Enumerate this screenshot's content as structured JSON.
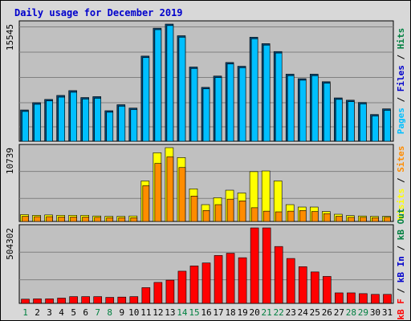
{
  "title": "Daily usage for December 2019",
  "chart_data": [
    {
      "type": "bar",
      "panel": "top",
      "title": "Daily usage for December 2019",
      "ymax_label": "15545",
      "ylim": [
        0,
        15545
      ],
      "axis_label": [
        {
          "text": "Pages",
          "color": "#00bfff"
        },
        {
          "text": " / ",
          "color": "#000000"
        },
        {
          "text": "Files",
          "color": "#0000cc"
        },
        {
          "text": " / ",
          "color": "#000000"
        },
        {
          "text": "Hits",
          "color": "#008040"
        }
      ],
      "categories": [
        "1",
        "2",
        "3",
        "4",
        "5",
        "6",
        "7",
        "8",
        "9",
        "10",
        "11",
        "12",
        "13",
        "14",
        "15",
        "16",
        "17",
        "18",
        "19",
        "20",
        "21",
        "22",
        "23",
        "24",
        "25",
        "26",
        "27",
        "28",
        "29",
        "30",
        "31"
      ],
      "series": [
        {
          "name": "Hits",
          "color": "#004878",
          "values": [
            4150,
            5120,
            5550,
            6080,
            6720,
            5800,
            5920,
            4050,
            4850,
            4400,
            11300,
            15000,
            15545,
            14000,
            9850,
            7150,
            8650,
            10450,
            9950,
            13800,
            12950,
            11900,
            8900,
            8300,
            8900,
            7900,
            5750,
            5450,
            5150,
            3550,
            4300
          ]
        },
        {
          "name": "Files",
          "color": "#00bfff",
          "values": [
            3950,
            4900,
            5350,
            5850,
            6500,
            5600,
            5700,
            3850,
            4650,
            4200,
            11100,
            14800,
            15345,
            13800,
            9650,
            6950,
            8450,
            10250,
            9750,
            13600,
            12750,
            11700,
            8700,
            8100,
            8700,
            7700,
            5550,
            5250,
            4950,
            3350,
            4100
          ]
        }
      ]
    },
    {
      "type": "bar",
      "panel": "middle",
      "ymax_label": "10739",
      "ylim": [
        0,
        10739
      ],
      "axis_label": [
        {
          "text": "Visits",
          "color": "#ffff00"
        },
        {
          "text": " / ",
          "color": "#000000"
        },
        {
          "text": "Sites",
          "color": "#ff8c00"
        }
      ],
      "categories": [
        "1",
        "2",
        "3",
        "4",
        "5",
        "6",
        "7",
        "8",
        "9",
        "10",
        "11",
        "12",
        "13",
        "14",
        "15",
        "16",
        "17",
        "18",
        "19",
        "20",
        "21",
        "22",
        "23",
        "24",
        "25",
        "26",
        "27",
        "28",
        "29",
        "30",
        "31"
      ],
      "series": [
        {
          "name": "Visits",
          "color": "#ffff00",
          "values": [
            1000,
            900,
            950,
            900,
            900,
            900,
            800,
            750,
            750,
            800,
            5900,
            10000,
            10739,
            9300,
            4750,
            2450,
            3450,
            4550,
            4150,
            7250,
            7350,
            5900,
            2450,
            2100,
            2100,
            1450,
            1050,
            850,
            800,
            750,
            750
          ]
        },
        {
          "name": "Sites",
          "color": "#ff8c00",
          "values": [
            750,
            700,
            700,
            650,
            650,
            650,
            600,
            550,
            550,
            550,
            5200,
            8450,
            9400,
            7850,
            3700,
            1600,
            2450,
            3250,
            3000,
            2000,
            1500,
            1400,
            1500,
            1600,
            1450,
            1150,
            750,
            600,
            600,
            550,
            600
          ]
        }
      ]
    },
    {
      "type": "bar",
      "panel": "bottom",
      "ymax_label": "504302",
      "ylim": [
        0,
        504302
      ],
      "axis_label": [
        {
          "text": "kB F",
          "color": "#ff0000"
        },
        {
          "text": " / ",
          "color": "#000000"
        },
        {
          "text": "kB In",
          "color": "#0000cc"
        },
        {
          "text": " / ",
          "color": "#000000"
        },
        {
          "text": "kB Out",
          "color": "#008040"
        }
      ],
      "categories": [
        "1",
        "2",
        "3",
        "4",
        "5",
        "6",
        "7",
        "8",
        "9",
        "10",
        "11",
        "12",
        "13",
        "14",
        "15",
        "16",
        "17",
        "18",
        "19",
        "20",
        "21",
        "22",
        "23",
        "24",
        "25",
        "26",
        "27",
        "28",
        "29",
        "30",
        "31"
      ],
      "series": [
        {
          "name": "kB F",
          "color": "#ff0000",
          "values": [
            28000,
            30000,
            30000,
            35000,
            45000,
            45000,
            45000,
            40000,
            42000,
            45000,
            105000,
            140000,
            155000,
            215000,
            250000,
            270000,
            320000,
            335000,
            305000,
            504302,
            504302,
            380000,
            300000,
            245000,
            210000,
            180000,
            70000,
            70000,
            65000,
            60000,
            60000
          ]
        }
      ]
    }
  ],
  "days": [
    {
      "label": "1",
      "color": "#008040"
    },
    {
      "label": "2",
      "color": "#000000"
    },
    {
      "label": "3",
      "color": "#000000"
    },
    {
      "label": "4",
      "color": "#000000"
    },
    {
      "label": "5",
      "color": "#000000"
    },
    {
      "label": "6",
      "color": "#000000"
    },
    {
      "label": "7",
      "color": "#008040"
    },
    {
      "label": "8",
      "color": "#008040"
    },
    {
      "label": "9",
      "color": "#000000"
    },
    {
      "label": "10",
      "color": "#000000"
    },
    {
      "label": "11",
      "color": "#000000"
    },
    {
      "label": "12",
      "color": "#000000"
    },
    {
      "label": "13",
      "color": "#000000"
    },
    {
      "label": "14",
      "color": "#008040"
    },
    {
      "label": "15",
      "color": "#008040"
    },
    {
      "label": "16",
      "color": "#000000"
    },
    {
      "label": "17",
      "color": "#000000"
    },
    {
      "label": "18",
      "color": "#000000"
    },
    {
      "label": "19",
      "color": "#000000"
    },
    {
      "label": "20",
      "color": "#000000"
    },
    {
      "label": "21",
      "color": "#008040"
    },
    {
      "label": "22",
      "color": "#008040"
    },
    {
      "label": "23",
      "color": "#000000"
    },
    {
      "label": "24",
      "color": "#000000"
    },
    {
      "label": "25",
      "color": "#000000"
    },
    {
      "label": "26",
      "color": "#000000"
    },
    {
      "label": "27",
      "color": "#000000"
    },
    {
      "label": "28",
      "color": "#008040"
    },
    {
      "label": "29",
      "color": "#008040"
    },
    {
      "label": "30",
      "color": "#000000"
    },
    {
      "label": "31",
      "color": "#000000"
    }
  ],
  "colors": {
    "background": "#d8d8d8",
    "plot": "#c0c0c0",
    "grid": "#808080"
  }
}
